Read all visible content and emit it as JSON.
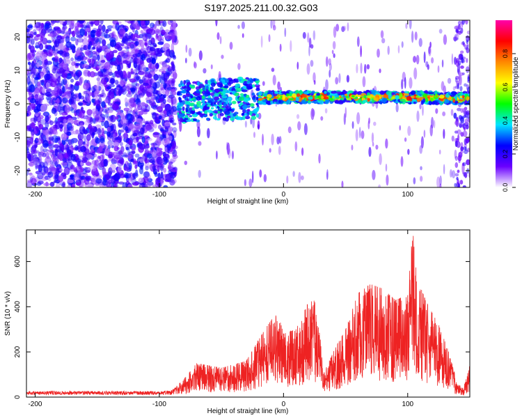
{
  "title": "S197.2025.211.00.32.G03",
  "chart_data": [
    {
      "type": "heatmap",
      "xlabel": "Height of straight line (km)",
      "ylabel": "Frequency (Hz)",
      "xlim": [
        -207,
        150
      ],
      "ylim": [
        -25,
        25
      ],
      "xticks": [
        -200,
        -100,
        0,
        100
      ],
      "yticks": [
        -20,
        -10,
        0,
        10,
        20
      ],
      "colorbar": {
        "label": "Normalized spectral amplitude",
        "range": [
          0.0,
          1.0
        ],
        "ticks": [
          "0.0",
          "0.2",
          "0.4",
          "0.6",
          "0.8"
        ],
        "colormap": [
          "#ffffff",
          "#6a00ff",
          "#0000ff",
          "#00e5ff",
          "#00ff00",
          "#ffff00",
          "#ff8800",
          "#ff0000",
          "#ff00aa"
        ]
      },
      "ridge": {
        "x_start": -85,
        "x_end": 150,
        "freq_hz": [
          {
            "x": -85,
            "y": 0.5
          },
          {
            "x": -40,
            "y": 1.5
          },
          {
            "x": 0,
            "y": 2.0
          },
          {
            "x": 50,
            "y": 2.0
          },
          {
            "x": 100,
            "y": 2.0
          },
          {
            "x": 150,
            "y": 1.5
          }
        ]
      },
      "noise_region": {
        "x_start": -207,
        "x_end": -95
      }
    },
    {
      "type": "line",
      "xlabel": "Height of straight line (km)",
      "ylabel": "SNR (10 * v/v)",
      "xlim": [
        -207,
        150
      ],
      "ylim": [
        0,
        740
      ],
      "xticks": [
        -200,
        -100,
        0,
        100
      ],
      "yticks": [
        0,
        200,
        400,
        600
      ],
      "color": "#ee2222",
      "envelope": [
        {
          "x": -207,
          "y": 25
        },
        {
          "x": -100,
          "y": 25
        },
        {
          "x": -90,
          "y": 30
        },
        {
          "x": -80,
          "y": 80
        },
        {
          "x": -70,
          "y": 150
        },
        {
          "x": -50,
          "y": 130
        },
        {
          "x": -30,
          "y": 160
        },
        {
          "x": -15,
          "y": 300
        },
        {
          "x": -5,
          "y": 380
        },
        {
          "x": 0,
          "y": 280
        },
        {
          "x": 10,
          "y": 300
        },
        {
          "x": 20,
          "y": 420
        },
        {
          "x": 27,
          "y": 430
        },
        {
          "x": 32,
          "y": 100
        },
        {
          "x": 40,
          "y": 200
        },
        {
          "x": 50,
          "y": 300
        },
        {
          "x": 60,
          "y": 460
        },
        {
          "x": 70,
          "y": 500
        },
        {
          "x": 80,
          "y": 480
        },
        {
          "x": 90,
          "y": 430
        },
        {
          "x": 100,
          "y": 450
        },
        {
          "x": 104,
          "y": 740
        },
        {
          "x": 108,
          "y": 520
        },
        {
          "x": 115,
          "y": 420
        },
        {
          "x": 125,
          "y": 320
        },
        {
          "x": 133,
          "y": 200
        },
        {
          "x": 140,
          "y": 60
        },
        {
          "x": 145,
          "y": 40
        },
        {
          "x": 150,
          "y": 150
        }
      ]
    }
  ]
}
